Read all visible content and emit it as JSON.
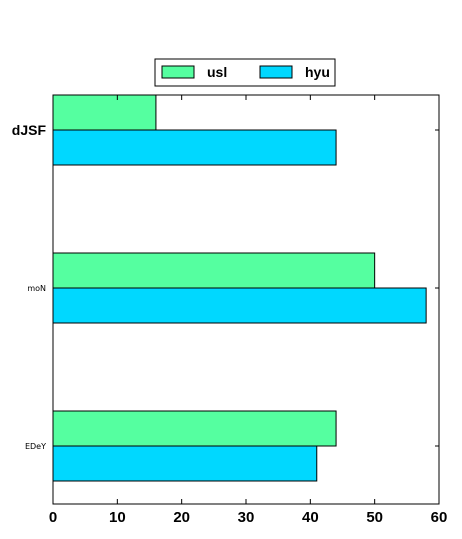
{
  "chart_data": {
    "type": "bar",
    "orientation": "horizontal",
    "categories": [
      "dJSF",
      "moN",
      "EDeY"
    ],
    "series": [
      {
        "name": "usl",
        "color": "#55ffa0",
        "values": [
          16,
          50,
          44
        ]
      },
      {
        "name": "hyu",
        "color": "#00d8ff",
        "values": [
          44,
          58,
          41
        ]
      }
    ],
    "xlim": [
      0,
      60
    ],
    "xticks": [
      0,
      10,
      20,
      30,
      40,
      50,
      60
    ],
    "grid": false,
    "legend_position": "top-center",
    "title": "",
    "xlabel": "",
    "ylabel": ""
  }
}
